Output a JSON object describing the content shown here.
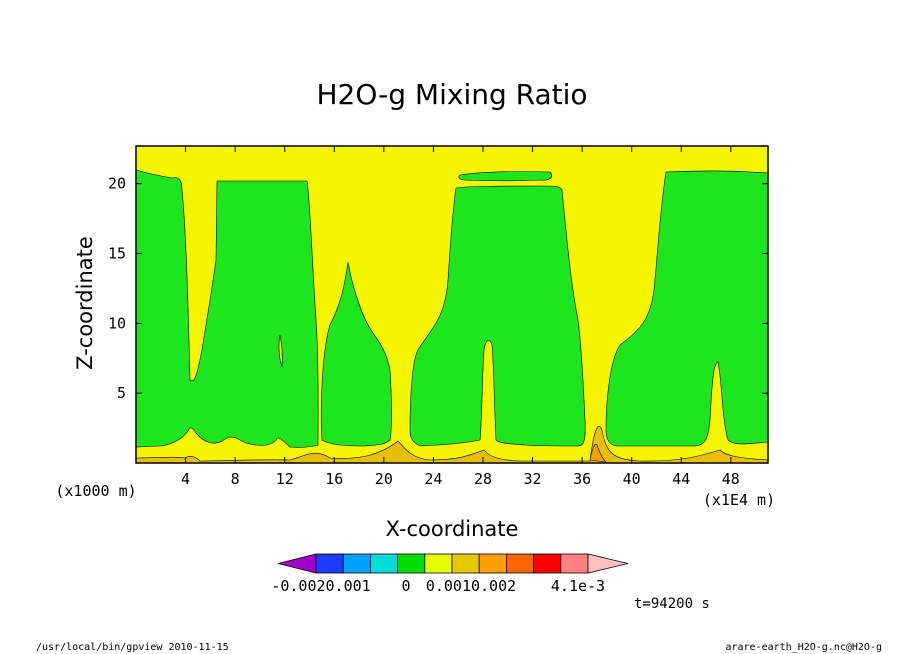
{
  "chart_data": {
    "type": "contour",
    "title": "H2O-g Mixing Ratio",
    "xlabel": "X-coordinate",
    "ylabel": "Z-coordinate",
    "x_unit_label": "(x1000 m)",
    "x_scale_label": "(x1E4 m)",
    "x_ticks": [
      "4",
      "8",
      "12",
      "16",
      "20",
      "24",
      "28",
      "32",
      "36",
      "40",
      "44",
      "48"
    ],
    "y_ticks": [
      "5",
      "10",
      "15",
      "20"
    ],
    "xlim": [
      0,
      51
    ],
    "ylim": [
      0,
      22.7
    ],
    "colorbar": {
      "colors": [
        "#a000c8",
        "#1e3cff",
        "#00a0ff",
        "#00dcdc",
        "#00dc00",
        "#e6ff00",
        "#e6c800",
        "#ffa000",
        "#ff6400",
        "#ff0000",
        "#ff8080",
        "#ffc0c0"
      ],
      "labels": [
        "-0.002",
        "0.001",
        "0",
        "0.0010.002",
        "4.1e-3"
      ],
      "first_label": "-0.0020.001"
    },
    "fields": {
      "background": "#f5f500",
      "moist": "#1ee61e",
      "surface": "#e6c000",
      "peak": "#f0a000"
    },
    "time_label": "t=94200 s",
    "footer_left": "/usr/local/bin/gpview  2010-11-15",
    "footer_right": "arare-earth_H2O-g.nc@H2O-g"
  }
}
